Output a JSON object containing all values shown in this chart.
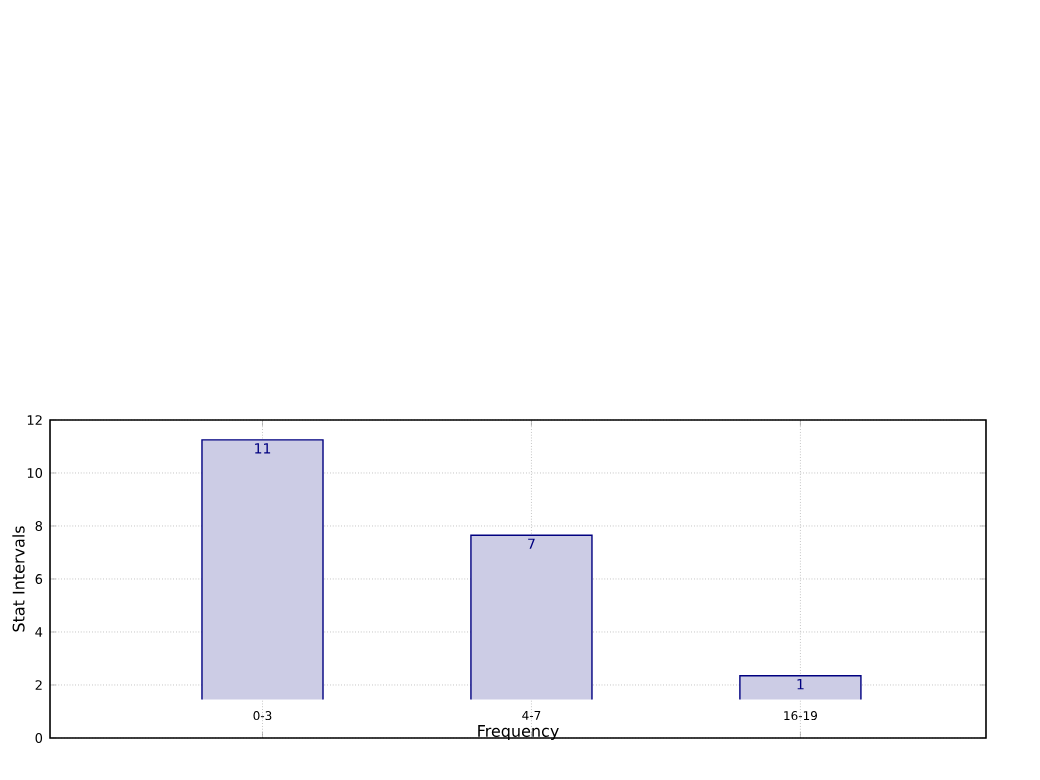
{
  "chart_data": {
    "type": "bar",
    "xlabel": "Frequency",
    "ylabel": "Stat Intervals",
    "categories": [
      "0-3",
      "4-7",
      "16-19"
    ],
    "base": [
      1.45,
      1.45,
      1.45
    ],
    "values": [
      9.8,
      6.2,
      0.9
    ],
    "color": "#ccccE5",
    "ylim": [
      0,
      12
    ],
    "yticks": [
      0,
      2,
      4,
      6,
      8,
      10,
      12
    ],
    "grid": true,
    "annotations": [
      "11",
      "7",
      "1"
    ]
  }
}
